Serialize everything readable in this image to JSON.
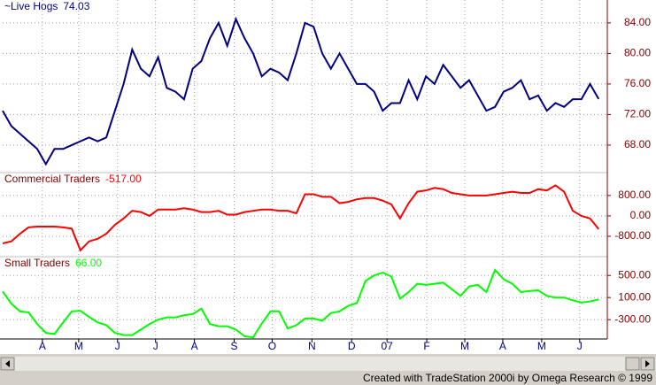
{
  "chart_data": [
    {
      "type": "line",
      "xlim": [
        0,
        70
      ],
      "ylim": [
        64.4,
        87.0
      ],
      "yticks": [
        {
          "value": 84,
          "label": "84.00"
        },
        {
          "value": 80,
          "label": "80.00"
        },
        {
          "value": 76,
          "label": "76.00"
        },
        {
          "value": 72,
          "label": "72.00"
        },
        {
          "value": 68,
          "label": "68.00"
        }
      ],
      "last": {
        "value": 74.03,
        "label": "74.03"
      },
      "series": [
        {
          "name": "~Live Hogs",
          "color": "#000080",
          "values": [
            72.5,
            70.5,
            69.5,
            68.5,
            67.5,
            65.5,
            67.5,
            67.5,
            68,
            68.5,
            69,
            68.5,
            69,
            72.5,
            76,
            80.5,
            78,
            77,
            79.5,
            75.5,
            75,
            74,
            78,
            79,
            82,
            84,
            81,
            84.5,
            82,
            80,
            77,
            78,
            77.5,
            76.5,
            80,
            84,
            83.5,
            80,
            78,
            80,
            78,
            76,
            76,
            75,
            72.5,
            73.5,
            73.5,
            76.5,
            74,
            77,
            76,
            78.5,
            77,
            75.5,
            76.5,
            74.5,
            72.5,
            73,
            75,
            75.5,
            76.5,
            74,
            74.5,
            72.5,
            73.5,
            73,
            74,
            74,
            76,
            74.03
          ]
        }
      ]
    },
    {
      "type": "line",
      "xlim": [
        0,
        70
      ],
      "ylim": [
        -1600,
        1700
      ],
      "yticks": [
        {
          "value": 800,
          "label": "800.00"
        },
        {
          "value": 0,
          "label": "0.00"
        },
        {
          "value": -800,
          "label": "-800.00"
        }
      ],
      "last": {
        "value": -517,
        "label": "-517.00"
      },
      "series": [
        {
          "name": "Commercial Traders",
          "color": "#ff0000",
          "values": [
            -1080,
            -1000,
            -700,
            -450,
            -420,
            -420,
            -420,
            -450,
            -500,
            -1350,
            -1000,
            -900,
            -700,
            -350,
            -100,
            200,
            150,
            0,
            250,
            250,
            250,
            300,
            250,
            150,
            150,
            200,
            50,
            50,
            150,
            200,
            250,
            250,
            200,
            200,
            100,
            850,
            850,
            750,
            750,
            500,
            550,
            650,
            700,
            700,
            600,
            450,
            -100,
            500,
            950,
            1000,
            1100,
            1050,
            900,
            850,
            800,
            800,
            800,
            850,
            900,
            950,
            900,
            900,
            1050,
            1000,
            1200,
            950,
            200,
            0,
            -100,
            -517
          ]
        }
      ]
    },
    {
      "type": "line",
      "xlim": [
        0,
        70
      ],
      "ylim": [
        -650,
        840
      ],
      "yticks": [
        {
          "value": 500,
          "label": "500.00"
        },
        {
          "value": 100,
          "label": "100.00"
        },
        {
          "value": -300,
          "label": "-300.00"
        }
      ],
      "xticks": [
        {
          "value": 4.6,
          "label": "A"
        },
        {
          "value": 8.8,
          "label": "M"
        },
        {
          "value": 13.3,
          "label": "J"
        },
        {
          "value": 17.7,
          "label": "J"
        },
        {
          "value": 22.2,
          "label": "A"
        },
        {
          "value": 26.8,
          "label": "S"
        },
        {
          "value": 31.2,
          "label": "O"
        },
        {
          "value": 35.8,
          "label": "N"
        },
        {
          "value": 40.4,
          "label": "D"
        },
        {
          "value": 44.5,
          "label": "07"
        },
        {
          "value": 49.1,
          "label": "F"
        },
        {
          "value": 53.5,
          "label": "M"
        },
        {
          "value": 57.9,
          "label": "A"
        },
        {
          "value": 62.4,
          "label": "M"
        },
        {
          "value": 66.8,
          "label": "J"
        }
      ],
      "last": {
        "value": 66,
        "label": "66.00"
      },
      "series": [
        {
          "name": "Small Traders",
          "color": "#00ff00",
          "values": [
            210,
            -10,
            -150,
            -170,
            -380,
            -540,
            -560,
            -350,
            -150,
            -140,
            -250,
            -350,
            -400,
            -540,
            -580,
            -580,
            -480,
            -380,
            -300,
            -260,
            -260,
            -220,
            -200,
            -100,
            -380,
            -420,
            -420,
            -480,
            -600,
            -620,
            -370,
            -150,
            -150,
            -460,
            -400,
            -280,
            -280,
            -320,
            -180,
            -150,
            -50,
            0,
            400,
            500,
            550,
            480,
            80,
            200,
            350,
            330,
            350,
            370,
            250,
            130,
            300,
            330,
            200,
            600,
            430,
            350,
            200,
            220,
            230,
            130,
            100,
            100,
            50,
            10,
            30,
            66
          ]
        }
      ]
    }
  ],
  "footer": "Created with TradeStation 2000i by Omega Research © 1999"
}
